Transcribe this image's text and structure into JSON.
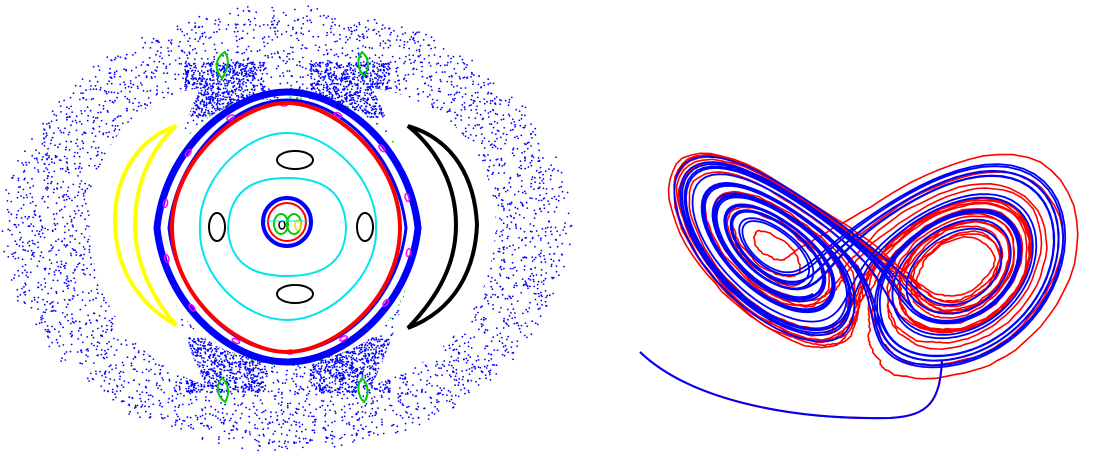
{
  "figure": {
    "panels": [
      {
        "kind": "poincare-section",
        "features": [
          {
            "name": "chaotic-sea",
            "color": "#0000ff"
          },
          {
            "name": "central-separatrix-layer",
            "color": "#0000ff"
          },
          {
            "name": "outer-invariant-curve",
            "color": "#ff0000"
          },
          {
            "name": "inner-small-ring",
            "color": "#ff0000"
          },
          {
            "name": "cyan-rounded-square-curve",
            "color": "#00ffff"
          },
          {
            "name": "cyan-figure-eight-curve",
            "color": "#00ffff"
          },
          {
            "name": "black-small-islands",
            "color": "#000000"
          },
          {
            "name": "black-crescent-right",
            "color": "#000000"
          },
          {
            "name": "yellow-crescent-left",
            "color": "#ffff00"
          },
          {
            "name": "magenta-island-chain",
            "color": "#ff00ff"
          },
          {
            "name": "green-corner-islands",
            "color": "#00cc00"
          }
        ]
      },
      {
        "kind": "trajectory-comparison",
        "series": [
          {
            "name": "smooth-trajectory",
            "color": "#0000ff"
          },
          {
            "name": "noisy-trajectory",
            "color": "#ff0000"
          }
        ]
      }
    ]
  }
}
